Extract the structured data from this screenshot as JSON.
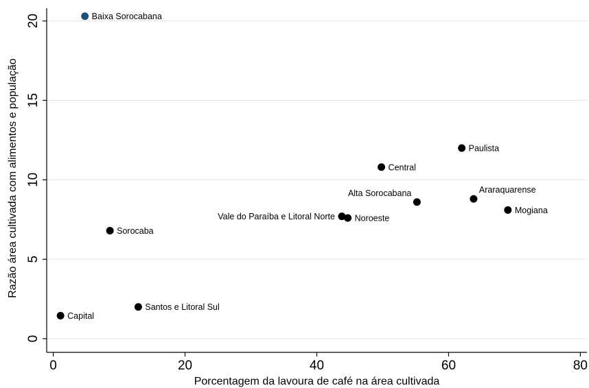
{
  "chart_data": {
    "type": "scatter",
    "title": "",
    "xlabel": "Porcentagem da lavoura de café na área cultivada",
    "ylabel": "Razão área cultivada com alimentos e população",
    "xlim": [
      -1,
      81
    ],
    "ylim": [
      -0.6,
      20.8
    ],
    "xticks": [
      0,
      20,
      40,
      60,
      80
    ],
    "yticks": [
      0,
      5,
      10,
      15,
      20
    ],
    "grid": "horizontal",
    "colors": {
      "point": "#000000",
      "highlight": "#1f4e79",
      "grid": "#e8e8e8",
      "axis": "#000000"
    },
    "points": [
      {
        "label": "Baixa Sorocabana",
        "x": 4.8,
        "y": 20.3,
        "highlight": true,
        "label_pos": "right"
      },
      {
        "label": "Paulista",
        "x": 62.0,
        "y": 12.0,
        "label_pos": "right"
      },
      {
        "label": "Central",
        "x": 49.8,
        "y": 10.8,
        "label_pos": "right"
      },
      {
        "label": "Alta Sorocabana",
        "x": 55.2,
        "y": 8.6,
        "label_pos": "above-left"
      },
      {
        "label": "Araraquarense",
        "x": 63.8,
        "y": 8.8,
        "label_pos": "above-right"
      },
      {
        "label": "Mogiana",
        "x": 69.0,
        "y": 8.1,
        "label_pos": "right"
      },
      {
        "label": "Vale do Paraíba e Litoral Norte",
        "x": 43.8,
        "y": 7.7,
        "label_pos": "left"
      },
      {
        "label": "Noroeste",
        "x": 44.7,
        "y": 7.6,
        "label_pos": "right"
      },
      {
        "label": "Sorocaba",
        "x": 8.6,
        "y": 6.8,
        "label_pos": "right"
      },
      {
        "label": "Santos e Litoral Sul",
        "x": 12.9,
        "y": 2.0,
        "label_pos": "right"
      },
      {
        "label": "Capital",
        "x": 1.1,
        "y": 1.45,
        "label_pos": "right"
      }
    ]
  }
}
